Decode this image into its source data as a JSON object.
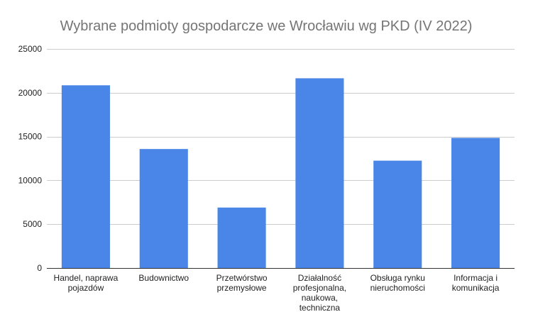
{
  "chart_data": {
    "type": "bar",
    "title": "Wybrane podmioty gospodarcze we Wrocławiu wg PKD (IV 2022)",
    "xlabel": "",
    "ylabel": "",
    "categories": [
      [
        "Handel, naprawa",
        "pojazdów"
      ],
      [
        "Budownictwo"
      ],
      [
        "Przetwórstwo",
        "przemysłowe"
      ],
      [
        "Działalność",
        "profesjonalna,",
        "naukowa,",
        "techniczna"
      ],
      [
        "Obsługa rynku",
        "nieruchomości"
      ],
      [
        "Informacja i",
        "komunikacja"
      ]
    ],
    "values": [
      20850,
      13580,
      6900,
      21650,
      12250,
      14850
    ],
    "ylim": [
      0,
      25000
    ],
    "yticks": [
      0,
      5000,
      10000,
      15000,
      20000,
      25000
    ],
    "grid": true,
    "legend": "none",
    "bar_color": "#4a86e8"
  }
}
